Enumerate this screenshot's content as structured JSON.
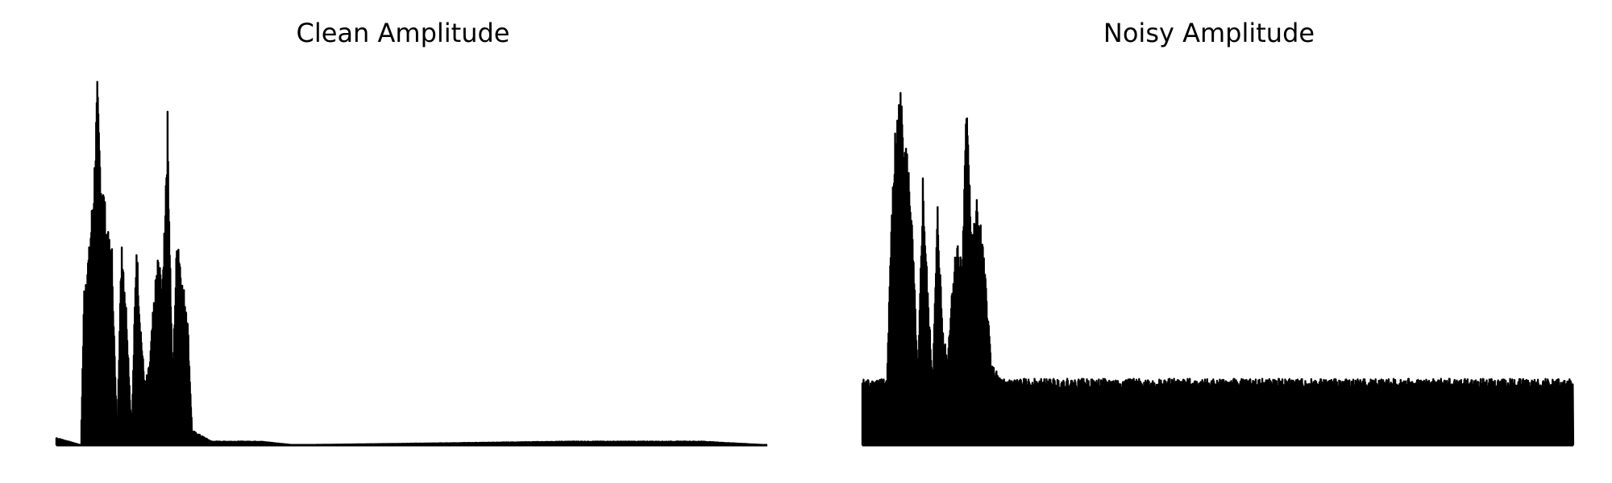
{
  "figure": {
    "background": "#ffffff",
    "line_color": "#000000"
  },
  "chart_data": [
    {
      "type": "line",
      "title": "Clean Amplitude",
      "xlabel": "",
      "ylabel": "",
      "axes_visible": false,
      "grid": false,
      "legend": "none",
      "xlim": [
        0,
        1000
      ],
      "ylim": [
        0,
        1
      ],
      "segments": [
        {
          "x": 35,
          "y": 0.02
        },
        {
          "x": 50,
          "y": 0.0
        },
        {
          "x": 52,
          "y": 0.44
        },
        {
          "x": 55,
          "y": 0.54
        },
        {
          "x": 58,
          "y": 0.74
        },
        {
          "x": 60,
          "y": 0.99
        },
        {
          "x": 62,
          "y": 0.77
        },
        {
          "x": 64,
          "y": 0.7
        },
        {
          "x": 66,
          "y": 0.59
        },
        {
          "x": 69,
          "y": 0.54
        },
        {
          "x": 72,
          "y": 0.02
        },
        {
          "x": 75,
          "y": 0.58
        },
        {
          "x": 78,
          "y": 0.36
        },
        {
          "x": 81,
          "y": 0.03
        },
        {
          "x": 84,
          "y": 0.57
        },
        {
          "x": 86,
          "y": 0.37
        },
        {
          "x": 89,
          "y": 0.17
        },
        {
          "x": 92,
          "y": 0.22
        },
        {
          "x": 94,
          "y": 0.36
        },
        {
          "x": 97,
          "y": 0.52
        },
        {
          "x": 100,
          "y": 0.45
        },
        {
          "x": 103,
          "y": 0.91
        },
        {
          "x": 106,
          "y": 0.18
        },
        {
          "x": 109,
          "y": 0.61
        },
        {
          "x": 112,
          "y": 0.45
        },
        {
          "x": 115,
          "y": 0.38
        },
        {
          "x": 118,
          "y": 0.04
        },
        {
          "x": 130,
          "y": 0.01
        },
        {
          "x": 160,
          "y": 0.01
        },
        {
          "x": 180,
          "y": 0.0
        },
        {
          "x": 350,
          "y": 0.01
        },
        {
          "x": 380,
          "y": 0.01
        },
        {
          "x": 430,
          "y": 0.01
        },
        {
          "x": 470,
          "y": 0.0
        }
      ]
    },
    {
      "type": "line",
      "title": "Noisy Amplitude",
      "xlabel": "",
      "ylabel": "",
      "axes_visible": false,
      "grid": false,
      "legend": "none",
      "xlim": [
        0,
        1000
      ],
      "ylim": [
        0,
        1
      ],
      "noise_floor": 0.18,
      "segments": [
        {
          "x": 35,
          "y": 0.18
        },
        {
          "x": 50,
          "y": 0.18
        },
        {
          "x": 52,
          "y": 0.52
        },
        {
          "x": 55,
          "y": 0.86
        },
        {
          "x": 58,
          "y": 0.98
        },
        {
          "x": 61,
          "y": 0.86
        },
        {
          "x": 64,
          "y": 0.73
        },
        {
          "x": 66,
          "y": 0.54
        },
        {
          "x": 69,
          "y": 0.18
        },
        {
          "x": 72,
          "y": 0.74
        },
        {
          "x": 75,
          "y": 0.42
        },
        {
          "x": 78,
          "y": 0.18
        },
        {
          "x": 81,
          "y": 0.66
        },
        {
          "x": 84,
          "y": 0.33
        },
        {
          "x": 87,
          "y": 0.24
        },
        {
          "x": 90,
          "y": 0.45
        },
        {
          "x": 93,
          "y": 0.57
        },
        {
          "x": 96,
          "y": 0.5
        },
        {
          "x": 99,
          "y": 0.99
        },
        {
          "x": 102,
          "y": 0.56
        },
        {
          "x": 105,
          "y": 0.67
        },
        {
          "x": 108,
          "y": 0.58
        },
        {
          "x": 111,
          "y": 0.42
        },
        {
          "x": 114,
          "y": 0.22
        },
        {
          "x": 120,
          "y": 0.18
        },
        {
          "x": 470,
          "y": 0.18
        }
      ]
    }
  ]
}
